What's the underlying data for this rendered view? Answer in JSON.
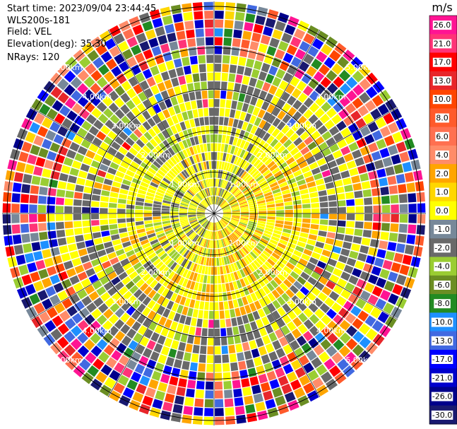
{
  "info": {
    "start_time": "Start time: 2023/09/04 23:44:45",
    "instrument": "WLS200s-181",
    "field": "Field: VEL",
    "elevation": "Elevation(deg): 35.30",
    "nrays": "NRays: 120"
  },
  "chart_data": {
    "type": "heatmap",
    "projection": "polar PPI",
    "field": "VEL",
    "units": "m/s",
    "nrays": 120,
    "range_ring_labels": [
      "1.00km",
      "2.00km",
      "3.00km",
      "4.00km",
      "5.00km"
    ],
    "colorbar": {
      "title": "m/s",
      "ticks": [
        "26.0",
        "21.0",
        "17.0",
        "13.0",
        "10.0",
        "8.0",
        "6.0",
        "4.0",
        "2.0",
        "1.0",
        "0.0",
        "-1.0",
        "-2.0",
        "-4.0",
        "-6.0",
        "-8.0",
        "-10.0",
        "-13.0",
        "-17.0",
        "-21.0",
        "-26.0",
        "-30.0"
      ],
      "colors": [
        "#ff1493",
        "#ff3377",
        "#ff0000",
        "#e8262a",
        "#ff4500",
        "#ff5a2b",
        "#ff7050",
        "#ff8c69",
        "#ffa500",
        "#ffd700",
        "#ffff00",
        "#778899",
        "#696969",
        "#9acd32",
        "#6b8e23",
        "#228b22",
        "#1e90ff",
        "#4169e1",
        "#0000ff",
        "#0000cd",
        "#00008b",
        "#191970"
      ]
    }
  }
}
